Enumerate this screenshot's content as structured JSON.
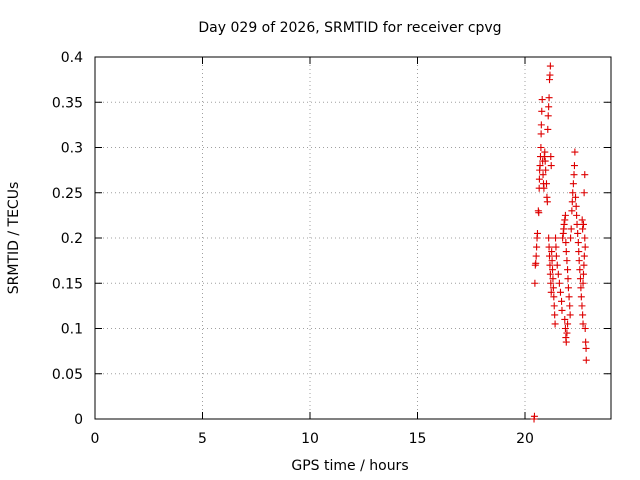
{
  "chart_data": {
    "type": "scatter",
    "title": "Day 029 of 2026, SRMTID for receiver cpvg",
    "xlabel": "GPS time / hours",
    "ylabel": "SRMTID / TECUs",
    "xlim": [
      0,
      24
    ],
    "ylim": [
      0,
      0.4
    ],
    "x_ticks": [
      0,
      5,
      10,
      15,
      20
    ],
    "y_ticks": [
      0,
      0.05,
      0.1,
      0.15,
      0.2,
      0.25,
      0.3,
      0.35,
      0.4
    ],
    "x_tick_labels": [
      "0",
      "5",
      "10",
      "15",
      "20"
    ],
    "y_tick_labels": [
      "0",
      "0.05",
      "0.1",
      "0.15",
      "0.2",
      "0.25",
      "0.3",
      "0.35",
      "0.4"
    ],
    "grid": true,
    "marker": "plus",
    "color": "#dd0000",
    "series": [
      {
        "points": [
          [
            20.42,
            0.0
          ],
          [
            20.44,
            0.003
          ],
          [
            20.46,
            0.15
          ],
          [
            20.48,
            0.17
          ],
          [
            20.5,
            0.172
          ],
          [
            20.52,
            0.18
          ],
          [
            20.54,
            0.19
          ],
          [
            20.56,
            0.2
          ],
          [
            20.58,
            0.205
          ],
          [
            20.62,
            0.23
          ],
          [
            20.64,
            0.228
          ],
          [
            20.66,
            0.255
          ],
          [
            20.67,
            0.265
          ],
          [
            20.68,
            0.275
          ],
          [
            20.7,
            0.28
          ],
          [
            20.72,
            0.29
          ],
          [
            20.74,
            0.3
          ],
          [
            20.75,
            0.315
          ],
          [
            20.76,
            0.325
          ],
          [
            20.78,
            0.34
          ],
          [
            20.8,
            0.353
          ],
          [
            20.82,
            0.285
          ],
          [
            20.84,
            0.27
          ],
          [
            20.86,
            0.26
          ],
          [
            20.88,
            0.255
          ],
          [
            20.9,
            0.29
          ],
          [
            20.92,
            0.295
          ],
          [
            20.94,
            0.285
          ],
          [
            20.96,
            0.275
          ],
          [
            21.0,
            0.26
          ],
          [
            21.02,
            0.245
          ],
          [
            21.04,
            0.24
          ],
          [
            21.06,
            0.32
          ],
          [
            21.08,
            0.335
          ],
          [
            21.1,
            0.345
          ],
          [
            21.12,
            0.355
          ],
          [
            21.14,
            0.375
          ],
          [
            21.16,
            0.38
          ],
          [
            21.18,
            0.39
          ],
          [
            21.2,
            0.29
          ],
          [
            21.22,
            0.28
          ],
          [
            21.1,
            0.2
          ],
          [
            21.12,
            0.19
          ],
          [
            21.14,
            0.18
          ],
          [
            21.16,
            0.17
          ],
          [
            21.18,
            0.16
          ],
          [
            21.2,
            0.15
          ],
          [
            21.22,
            0.14
          ],
          [
            21.24,
            0.185
          ],
          [
            21.26,
            0.175
          ],
          [
            21.28,
            0.165
          ],
          [
            21.3,
            0.155
          ],
          [
            21.32,
            0.145
          ],
          [
            21.34,
            0.135
          ],
          [
            21.36,
            0.125
          ],
          [
            21.38,
            0.115
          ],
          [
            21.4,
            0.105
          ],
          [
            21.42,
            0.2
          ],
          [
            21.44,
            0.19
          ],
          [
            21.46,
            0.18
          ],
          [
            21.5,
            0.17
          ],
          [
            21.55,
            0.16
          ],
          [
            21.6,
            0.15
          ],
          [
            21.65,
            0.14
          ],
          [
            21.7,
            0.13
          ],
          [
            21.72,
            0.12
          ],
          [
            21.75,
            0.2
          ],
          [
            21.78,
            0.205
          ],
          [
            21.8,
            0.21
          ],
          [
            21.82,
            0.215
          ],
          [
            21.85,
            0.22
          ],
          [
            21.88,
            0.225
          ],
          [
            21.9,
            0.195
          ],
          [
            21.92,
            0.185
          ],
          [
            21.95,
            0.175
          ],
          [
            21.98,
            0.165
          ],
          [
            22.0,
            0.155
          ],
          [
            22.02,
            0.145
          ],
          [
            21.85,
            0.11
          ],
          [
            21.88,
            0.1
          ],
          [
            21.9,
            0.09
          ],
          [
            21.92,
            0.085
          ],
          [
            21.95,
            0.095
          ],
          [
            21.98,
            0.105
          ],
          [
            22.05,
            0.135
          ],
          [
            22.08,
            0.125
          ],
          [
            22.1,
            0.115
          ],
          [
            22.12,
            0.2
          ],
          [
            22.15,
            0.21
          ],
          [
            22.18,
            0.23
          ],
          [
            22.2,
            0.24
          ],
          [
            22.22,
            0.25
          ],
          [
            22.25,
            0.26
          ],
          [
            22.28,
            0.27
          ],
          [
            22.3,
            0.28
          ],
          [
            22.32,
            0.295
          ],
          [
            22.35,
            0.245
          ],
          [
            22.38,
            0.235
          ],
          [
            22.4,
            0.225
          ],
          [
            22.42,
            0.215
          ],
          [
            22.45,
            0.205
          ],
          [
            22.48,
            0.195
          ],
          [
            22.5,
            0.185
          ],
          [
            22.52,
            0.175
          ],
          [
            22.55,
            0.165
          ],
          [
            22.58,
            0.155
          ],
          [
            22.6,
            0.145
          ],
          [
            22.62,
            0.135
          ],
          [
            22.65,
            0.125
          ],
          [
            22.68,
            0.115
          ],
          [
            22.7,
            0.105
          ],
          [
            22.72,
            0.215
          ],
          [
            22.75,
            0.25
          ],
          [
            22.78,
            0.27
          ],
          [
            22.8,
            0.1
          ],
          [
            22.82,
            0.085
          ],
          [
            22.84,
            0.078
          ],
          [
            22.85,
            0.065
          ],
          [
            22.8,
            0.19
          ],
          [
            22.78,
            0.2
          ],
          [
            22.76,
            0.18
          ],
          [
            22.74,
            0.17
          ],
          [
            22.72,
            0.16
          ],
          [
            22.7,
            0.15
          ],
          [
            22.68,
            0.21
          ],
          [
            22.66,
            0.22
          ]
        ]
      }
    ]
  }
}
